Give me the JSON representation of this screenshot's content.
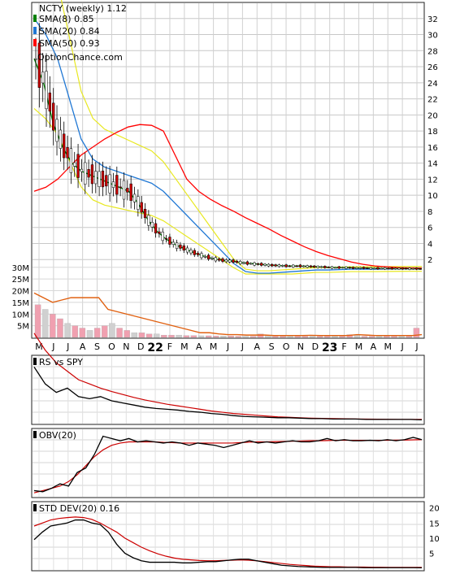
{
  "chart_data": [
    {
      "type": "candlestick",
      "title": "NCTY (weekly) 1.12",
      "watermark": "OptionChance.com",
      "y_ticks": [
        2,
        4,
        6,
        8,
        10,
        12,
        14,
        16,
        18,
        20,
        22,
        24,
        26,
        28,
        30,
        32
      ],
      "ylim": [
        0,
        34
      ],
      "x_labels": [
        "M",
        "J",
        "J",
        "A",
        "S",
        "O",
        "N",
        "D",
        "22",
        "F",
        "M",
        "A",
        "M",
        "J",
        "J",
        "A",
        "S",
        "O",
        "N",
        "D",
        "23",
        "F",
        "M",
        "A",
        "M",
        "J",
        "J"
      ],
      "x_year_labels": [
        "22",
        "23"
      ],
      "legend": [
        {
          "label": "SMA(8) 0.85",
          "color": "#008000"
        },
        {
          "label": "SMA(20) 0.84",
          "color": "#1f77d4"
        },
        {
          "label": "SMA(50) 0.93",
          "color": "#ff0000"
        }
      ],
      "sma8_values": [
        27,
        24,
        19,
        16,
        14,
        13,
        12.5,
        12,
        11.5,
        11,
        10.5,
        9,
        7,
        5.5,
        4.5,
        3.8,
        3.3,
        2.8,
        2.4,
        2.1,
        1.9,
        1.8,
        1.6,
        1.5,
        1.4,
        1.3,
        1.25,
        1.2,
        1.2,
        1.15,
        1.1,
        1.05,
        1.0,
        1.0,
        0.95,
        0.95,
        0.9,
        0.9,
        0.88,
        0.87,
        0.86,
        0.85
      ],
      "sma20_values": [
        32,
        30,
        27,
        22,
        17,
        14.5,
        13.5,
        13,
        12.5,
        12,
        11.5,
        10.5,
        9,
        7.5,
        6,
        4.5,
        3,
        1.5,
        0.5,
        0.3,
        0.3,
        0.4,
        0.5,
        0.6,
        0.7,
        0.7,
        0.75,
        0.8,
        0.8,
        0.8,
        0.82,
        0.83,
        0.84,
        0.84
      ],
      "sma50_values": [
        10.5,
        11,
        12,
        13.5,
        15,
        16,
        17,
        17.8,
        18.5,
        18.8,
        18.7,
        18,
        15,
        12,
        10.5,
        9.5,
        8.7,
        8,
        7.2,
        6.5,
        5.8,
        5,
        4.3,
        3.6,
        3,
        2.5,
        2.1,
        1.7,
        1.4,
        1.2,
        1.1,
        1.0,
        0.95,
        0.93
      ],
      "volume_scale": {
        "ticks": [
          "30M",
          "25M",
          "20M",
          "15M",
          "10M",
          "5M"
        ],
        "values": [
          30,
          25,
          20,
          15,
          10,
          5
        ],
        "max": 32
      },
      "volume_values_M": [
        14,
        12,
        10,
        8,
        6,
        5,
        4,
        3,
        4,
        5,
        6,
        4,
        3,
        2,
        2,
        1.5,
        1.5,
        1,
        1,
        1,
        0.8,
        0.8,
        0.7,
        0.7,
        0.6,
        0.6,
        0.6,
        0.5,
        0.5,
        0.5,
        1.5,
        1,
        0.5,
        0.5,
        0.5,
        0.5,
        0.5,
        0.5,
        0.5,
        0.5,
        0.5,
        0.5,
        1.2,
        1,
        0.5,
        0.5,
        0.5,
        0.5,
        0.5,
        0.5,
        0.5,
        4
      ],
      "volume_avg_M": [
        19,
        17,
        15,
        16,
        17,
        17,
        17,
        17,
        12,
        11,
        10,
        9,
        8,
        7,
        6,
        5,
        4,
        3,
        2,
        2,
        1.5,
        1.2,
        1.2,
        1.0,
        1.0,
        1.0,
        0.8,
        0.8,
        0.8,
        0.8,
        0.9,
        0.8,
        0.8,
        0.8,
        0.8,
        1.2,
        1.0,
        0.8,
        0.8,
        0.8,
        0.8,
        0.8,
        1.2
      ]
    },
    {
      "type": "line",
      "title": "RS vs SPY",
      "series_values": [
        14,
        10,
        8,
        9,
        7,
        6.5,
        7,
        6,
        5.5,
        5,
        4.5,
        4.2,
        4,
        3.8,
        3.5,
        3.3,
        3,
        2.8,
        2.5,
        2.3,
        2.2,
        2.1,
        2,
        2,
        1.9,
        1.8,
        1.8,
        1.7,
        1.7,
        1.7,
        1.6,
        1.6,
        1.6,
        1.6,
        1.6,
        1.5
      ],
      "series_avg": [
        22,
        18,
        15,
        13,
        11,
        10,
        9,
        8.2,
        7.5,
        6.8,
        6.2,
        5.7,
        5.2,
        4.8,
        4.4,
        4,
        3.6,
        3.3,
        3,
        2.8,
        2.6,
        2.4,
        2.2,
        2.1,
        2,
        1.9,
        1.85,
        1.8,
        1.75,
        1.7,
        1.68,
        1.65,
        1.62,
        1.6,
        1.6,
        1.6
      ]
    },
    {
      "type": "line",
      "title": "OBV(20)",
      "series_values": [
        2,
        1.5,
        3,
        5,
        4,
        10,
        12,
        18,
        26,
        25,
        24,
        25,
        23.5,
        24,
        23.5,
        23,
        23.5,
        23,
        22,
        23,
        22.5,
        22,
        21,
        22,
        23,
        24,
        23,
        23.5,
        23,
        23.5,
        24,
        23.5,
        23.5,
        24,
        25,
        24,
        24.5,
        24,
        24,
        24.2,
        24,
        24.5,
        24,
        24.5,
        25.5,
        24.5
      ],
      "series_avg": [
        1,
        2,
        3,
        4,
        6,
        9,
        13,
        17,
        20,
        22,
        23,
        23.5,
        23.5,
        23.5,
        23.5,
        23.3,
        23.2,
        23,
        23,
        23,
        23,
        23,
        23,
        23,
        23.2,
        23.4,
        23.5,
        23.5,
        23.6,
        23.7,
        23.8,
        23.9,
        24,
        24,
        24.1,
        24.2,
        24.2,
        24.2,
        24.2,
        24.2,
        24.2,
        24.2,
        24.3,
        24.3,
        24.4,
        24.5
      ]
    },
    {
      "type": "line",
      "title": "STD DEV(20) 0.16",
      "y_ticks": [
        5,
        10,
        15,
        20
      ],
      "ylim": [
        0,
        21
      ],
      "series_values": [
        9.5,
        12,
        14,
        14.5,
        15,
        16,
        16,
        15,
        14.5,
        12,
        8,
        5,
        3.5,
        2.5,
        2,
        2,
        2,
        2,
        1.8,
        1.8,
        2,
        2.2,
        2.2,
        2.5,
        2.8,
        3,
        3,
        2.5,
        2,
        1.5,
        1,
        0.8,
        0.6,
        0.5,
        0.4,
        0.3,
        0.3,
        0.3,
        0.3,
        0.3,
        0.2,
        0.2,
        0.2,
        0.2,
        0.2,
        0.2,
        0.2,
        0.16
      ],
      "series_avg": [
        14,
        15,
        16,
        16.5,
        16.8,
        17,
        16.8,
        16.2,
        15,
        13.5,
        12,
        10,
        8.5,
        7,
        5.8,
        4.8,
        4,
        3.4,
        3,
        2.8,
        2.6,
        2.5,
        2.5,
        2.6,
        2.7,
        2.8,
        2.7,
        2.5,
        2.2,
        1.9,
        1.6,
        1.3,
        1.1,
        0.9,
        0.7,
        0.6,
        0.5,
        0.5,
        0.4,
        0.4,
        0.4,
        0.35,
        0.35,
        0.3,
        0.3,
        0.3,
        0.3,
        0.3
      ]
    }
  ]
}
